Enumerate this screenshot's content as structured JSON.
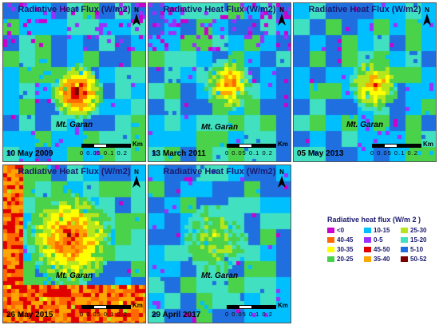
{
  "panels": [
    {
      "title": "Radiative Heat Flux (W/m2)",
      "place": "Mt. Garan",
      "date": "10 May 2009",
      "scale_unit": "Km",
      "scale_ticks": "0 0.05 0.1   0.2",
      "seed": 11,
      "hotspot": "strong"
    },
    {
      "title": "Radiative Heat Flux (W/m2)",
      "place": "Mt. Garan",
      "date": "13 March 2011",
      "scale_unit": "Km",
      "scale_ticks": "0 0.05 0.1   0.2",
      "seed": 23,
      "hotspot": "medium"
    },
    {
      "title": "Radiative Heat Flux (W/m2)",
      "place": "Mt. Garan",
      "date": "05 May 2013",
      "scale_unit": "Km",
      "scale_ticks": "0 0.05 0.1   0.2",
      "seed": 37,
      "hotspot": "medium"
    },
    {
      "title": "Radiative Heat Flux (W/m2)",
      "place": "Mt. Garan",
      "date": "26 May 2015",
      "scale_unit": "Km",
      "scale_ticks": "0 0.05 0.1   0.2",
      "seed": 41,
      "hotspot": "hot"
    },
    {
      "title": "Radiative Heat Flux (W/m2)",
      "place": "Mt. Garan",
      "date": "29 April 2017",
      "scale_unit": "Km",
      "scale_ticks": "0 0.05 0.1   0.2",
      "seed": 53,
      "hotspot": "weak"
    }
  ],
  "north_label": "N",
  "legend": {
    "title": "Radiative heat flux (W/m 2 )",
    "classes": [
      {
        "label": "<0",
        "color": "#cc00cc"
      },
      {
        "label": "10-15",
        "color": "#00bfff"
      },
      {
        "label": "25-30",
        "color": "#b5e61d"
      },
      {
        "label": "40-45",
        "color": "#ff6a00"
      },
      {
        "label": "0-5",
        "color": "#9b30ff"
      },
      {
        "label": "15-20",
        "color": "#40e0c0"
      },
      {
        "label": "30-35",
        "color": "#ffff00"
      },
      {
        "label": "45-50",
        "color": "#e00000"
      },
      {
        "label": "5-10",
        "color": "#1f6fe0"
      },
      {
        "label": "20-25",
        "color": "#4ad24a"
      },
      {
        "label": "35-40",
        "color": "#ffa500"
      },
      {
        "label": "50-52",
        "color": "#7a0000"
      }
    ]
  }
}
